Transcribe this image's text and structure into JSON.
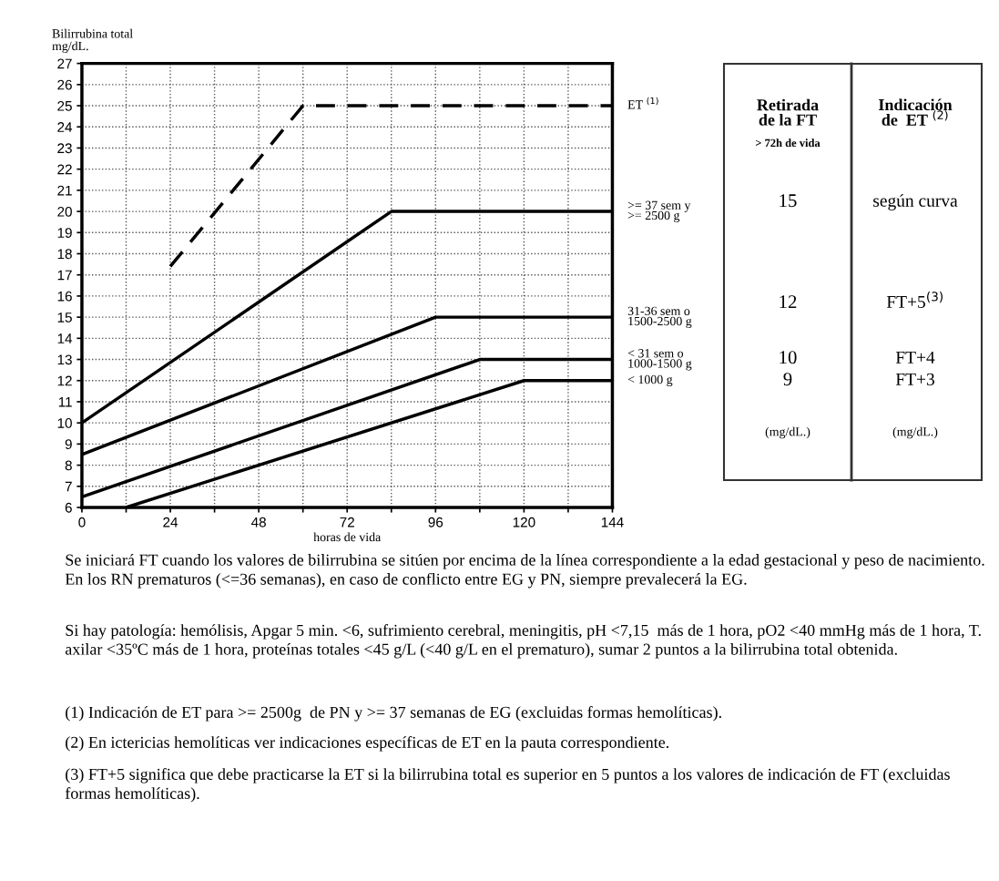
{
  "chart_data": {
    "type": "line",
    "ylabel": "Bilirrubina total\nmg/dL.",
    "xlabel": "horas de vida",
    "xlim": [
      0,
      144
    ],
    "ylim": [
      6,
      27
    ],
    "xticks": [
      0,
      {
        "value": 12,
        "label": null
      },
      24,
      {
        "value": 36,
        "label": null
      },
      48,
      {
        "value": 60,
        "label": null
      },
      72,
      {
        "value": 84,
        "label": null
      },
      96,
      {
        "value": 108,
        "label": null
      },
      120,
      {
        "value": 132,
        "label": null
      },
      144
    ],
    "yticks": [
      6,
      7,
      8,
      9,
      10,
      11,
      12,
      13,
      14,
      15,
      16,
      17,
      18,
      19,
      20,
      21,
      22,
      23,
      24,
      25,
      26,
      27
    ],
    "grid": true,
    "series": [
      {
        "name": "ET $^{(1)}$",
        "color": "#000000",
        "line_style": "dashed",
        "x": [
          24,
          60,
          144
        ],
        "values": [
          17.4,
          25,
          25
        ]
      },
      {
        "name": ">= 37 sem y\n>= 2500 g",
        "color": "#000000",
        "x": [
          0,
          84,
          144
        ],
        "values": [
          10,
          20,
          20
        ]
      },
      {
        "name": "31-36 sem o\n1500-2500 g",
        "color": "#000000",
        "x": [
          0,
          96,
          144
        ],
        "values": [
          8.5,
          15,
          15
        ]
      },
      {
        "name": "< 31 sem o\n1000-1500 g",
        "color": "#000000",
        "x": [
          0,
          108,
          144
        ],
        "values": [
          6.5,
          13,
          13
        ]
      },
      {
        "name": "< 1000 g",
        "color": "#000000",
        "x": [
          12,
          120,
          144
        ],
        "values": [
          6,
          12,
          12
        ]
      }
    ],
    "annotations": [
      "Retirada\nde la FT",
      "> 72h de vida",
      "Indicación\nde  ET $^{(2)}$",
      "15",
      "según curva",
      "12",
      "FT+5$^{(3)}$",
      "10",
      "FT+4",
      "9",
      "FT+3",
      "(mg/dL.)",
      "(mg/dL.)",
      "Se iniciará FT cuando los valores de bilirrubina se sitúen por encima de la línea correspondiente a la edad gestacional y peso de nacimiento. En los RN prematuros (<=36 semanas), en caso de conflicto entre EG y PN, siempre prevalecerá la EG.",
      "Si hay patología: hemólisis, Apgar 5 min. <6, sufrimiento cerebral, meningitis, pH <7,15  más de 1 hora, pO2 <40 mmHg más de 1 hora, T. axilar <35ºC más de 1 hora, proteínas totales <45 g/L (<40 g/L en el prematuro), sumar 2 puntos a la bilirrubina total obtenida.",
      "(1) Indicación de ET para >= 2500g  de PN y >= 37 semanas de EG (excluidas formas hemolíticas).",
      "(2) En ictericias hemolíticas ver indicaciones específicas de ET en la pauta correspondiente.",
      "(3) FT+5 significa que debe practicarse la ET si la bilirrubina total es superior en 5 puntos a los valores de indicación de FT (excluidas formas hemolíticas)."
    ]
  }
}
